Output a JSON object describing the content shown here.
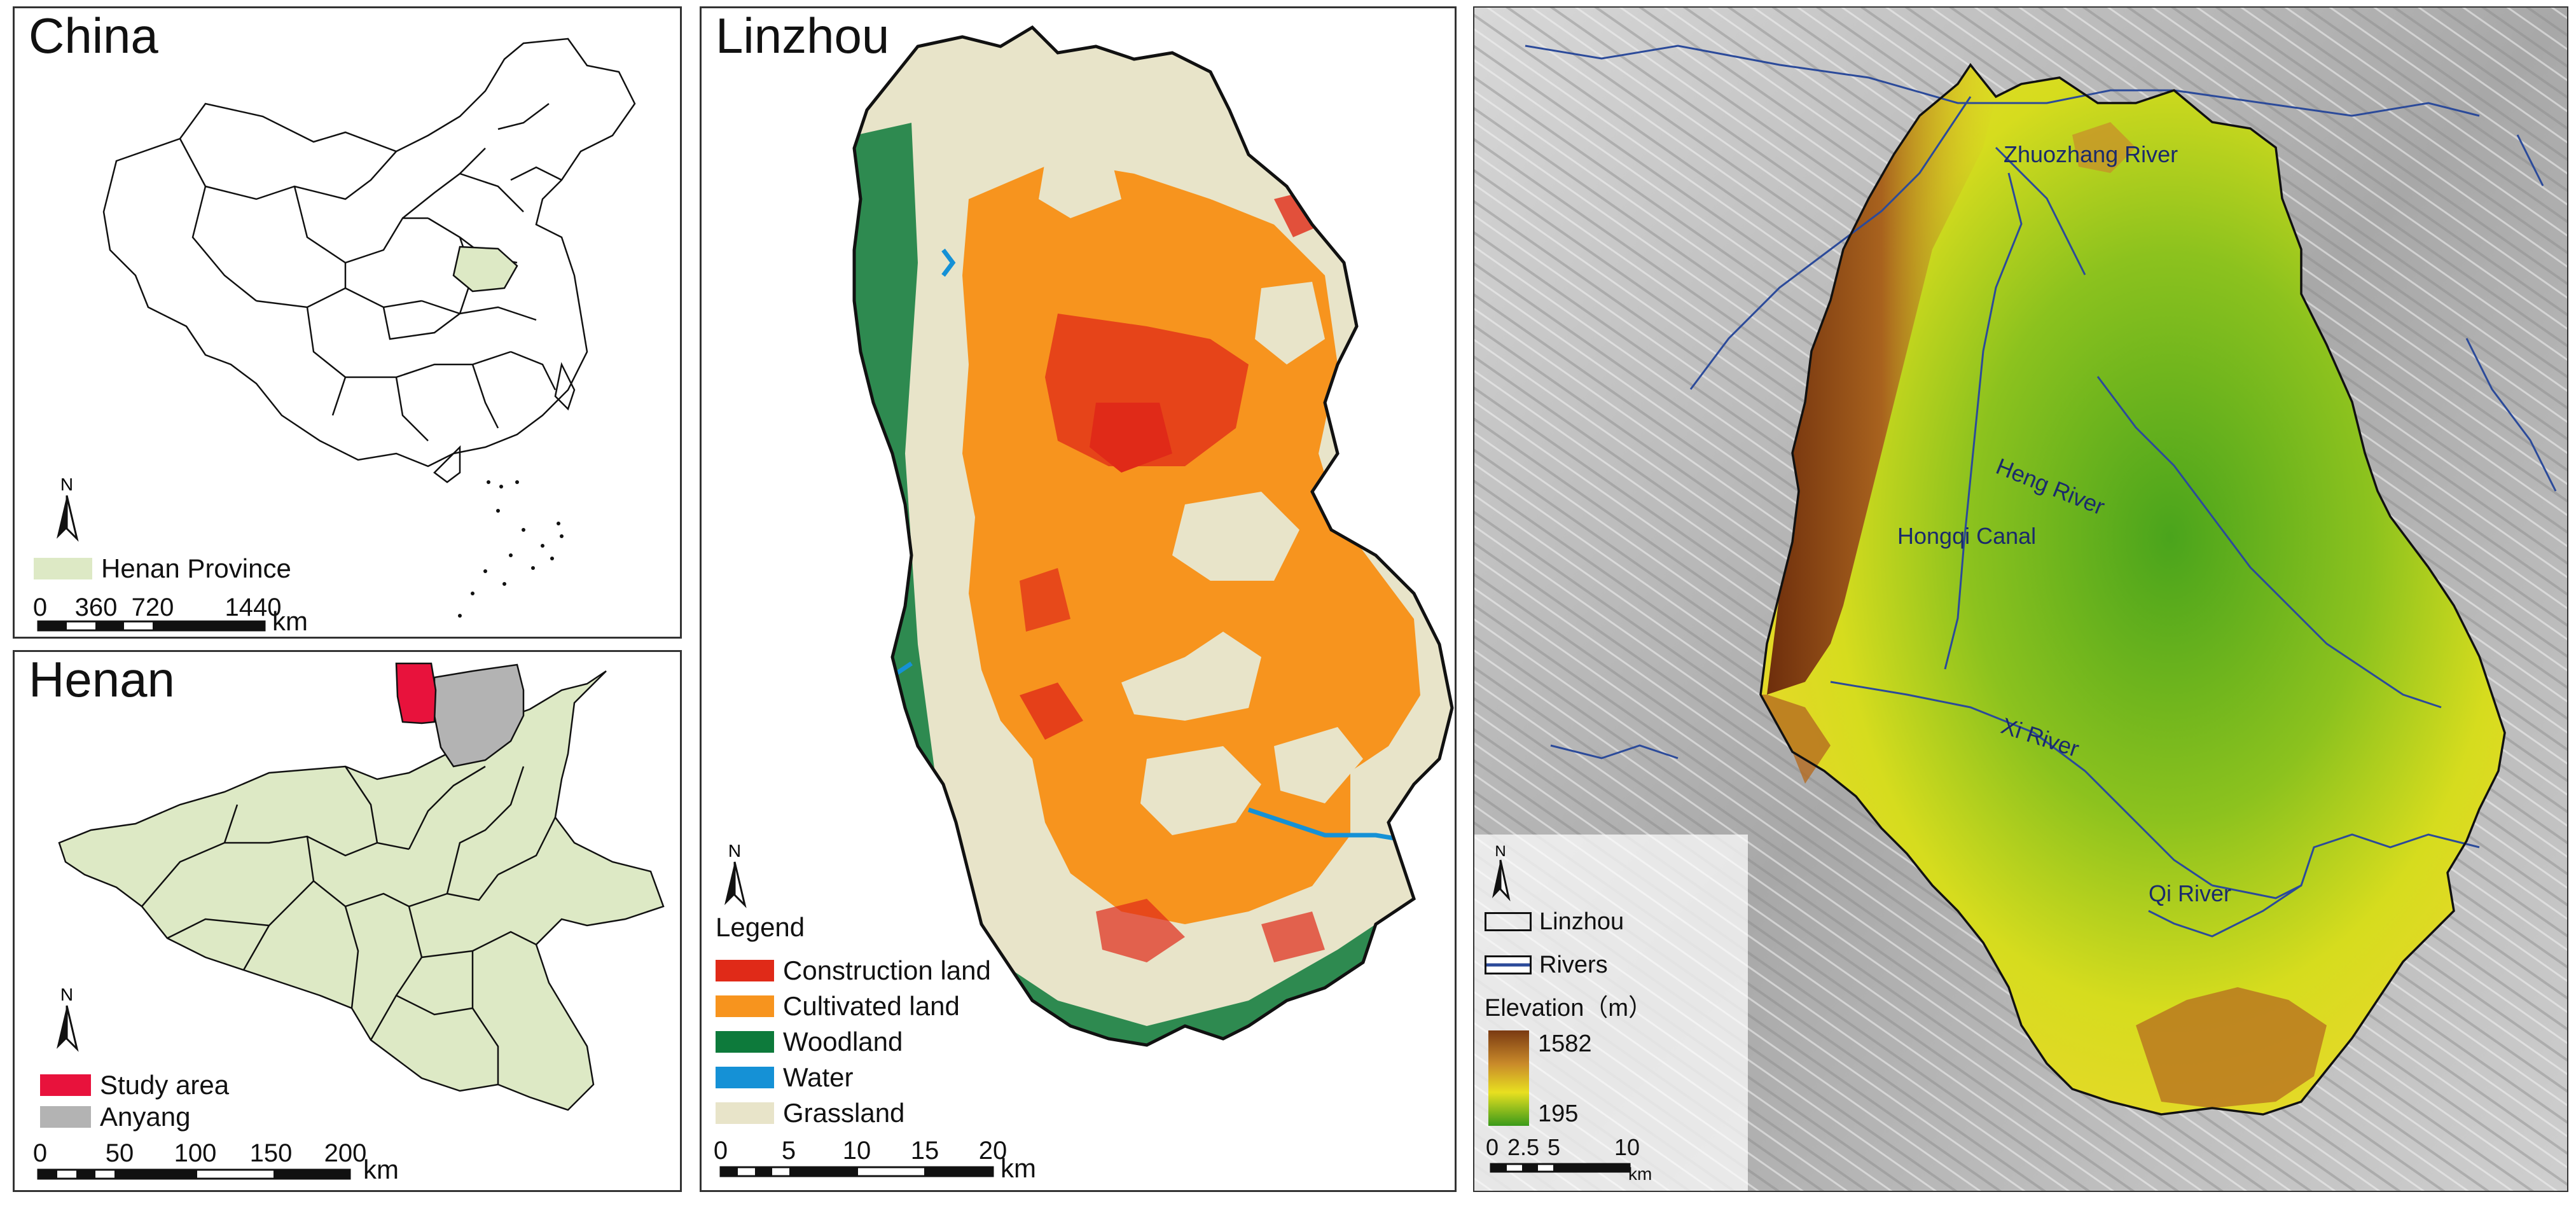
{
  "china_panel": {
    "title": "China",
    "legend_item": "Henan Province",
    "north": "N",
    "scale_ticks": [
      "0",
      "360",
      "720",
      "1440"
    ],
    "scale_unit": "km",
    "colors": {
      "province": "#dde9c5"
    }
  },
  "henan_panel": {
    "title": "Henan",
    "legend": [
      {
        "label": "Study area",
        "color": "#e8123c"
      },
      {
        "label": "Anyang",
        "color": "#b3b3b3"
      }
    ],
    "north": "N",
    "scale_ticks": [
      "0",
      "50",
      "100",
      "150",
      "200"
    ],
    "scale_unit": "km",
    "colors": {
      "province_fill": "#dde9c5"
    }
  },
  "linzhou_panel": {
    "title": "Linzhou",
    "north": "N",
    "legend_title": "Legend",
    "legend": [
      {
        "label": "Construction land",
        "color": "#e02a18"
      },
      {
        "label": "Cultivated land",
        "color": "#f7941e"
      },
      {
        "label": "Woodland",
        "color": "#0d7a3b"
      },
      {
        "label": "Water",
        "color": "#1591d6"
      },
      {
        "label": "Grassland",
        "color": "#e8e4c9"
      }
    ],
    "scale_ticks": [
      "0",
      "5",
      "10",
      "15",
      "20"
    ],
    "scale_unit": "km"
  },
  "elevation_panel": {
    "north": "N",
    "legend": {
      "boundary": "Linzhou",
      "rivers": "Rivers"
    },
    "elevation_title": "Elevation（m）",
    "elevation_max": "1582",
    "elevation_min": "195",
    "river_labels": [
      "Zhuozhang River",
      "Heng River",
      "Hongqi Canal",
      "Xi River",
      "Qi River"
    ],
    "scale_ticks": [
      "0",
      "2.5",
      "5",
      "10"
    ],
    "scale_unit": "km",
    "colors": {
      "river": "#2b4a9a",
      "high": "#7a3a12",
      "mid": "#e8e020",
      "low": "#3a9a1a"
    }
  }
}
